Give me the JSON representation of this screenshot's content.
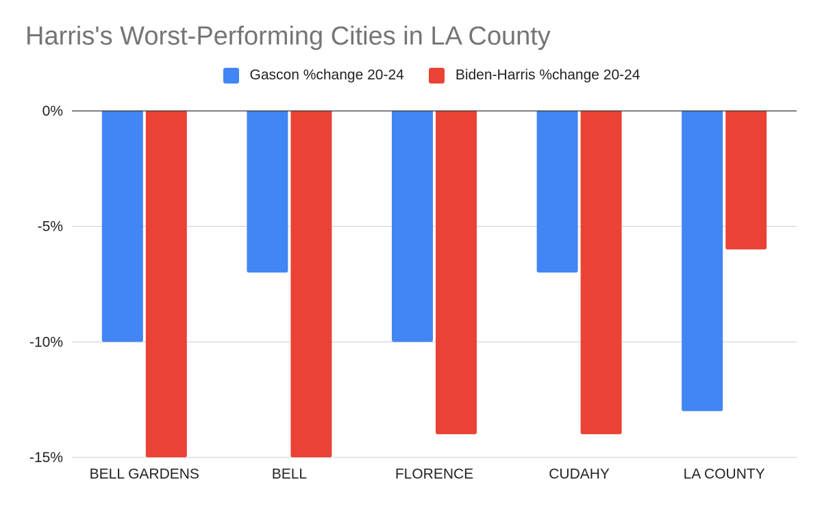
{
  "chart_data": {
    "type": "bar",
    "title": "Harris's Worst-Performing Cities in LA County",
    "xlabel": "",
    "ylabel": "",
    "categories": [
      "BELL GARDENS",
      "BELL",
      "FLORENCE",
      "CUDAHY",
      "LA COUNTY"
    ],
    "series": [
      {
        "name": "Gascon %change 20-24",
        "color": "#4285f4",
        "values": [
          -10,
          -7,
          -10,
          -7,
          -13
        ]
      },
      {
        "name": "Biden-Harris %change 20-24",
        "color": "#ea4335",
        "values": [
          -15,
          -15,
          -14,
          -14,
          -6
        ]
      }
    ],
    "ylim": [
      -15,
      0
    ],
    "yticks": [
      0,
      -5,
      -10,
      -15
    ],
    "ytick_labels": [
      "0%",
      "-5%",
      "-10%",
      "-15%"
    ],
    "grid": true,
    "legend_position": "top"
  }
}
